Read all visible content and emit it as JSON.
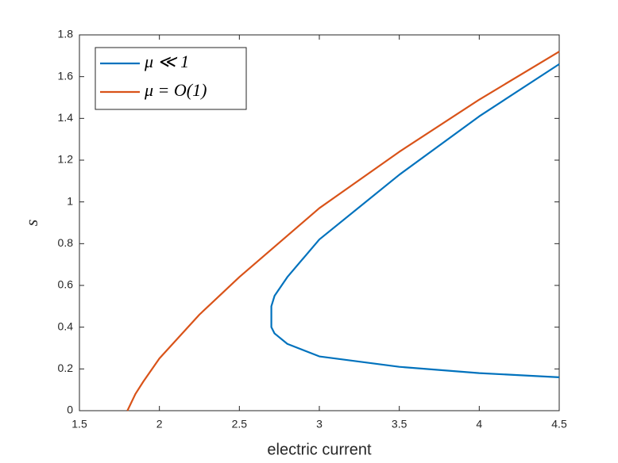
{
  "chart_data": {
    "type": "line",
    "x_label": "electric current",
    "y_label": "s",
    "xlim": [
      1.5,
      4.5
    ],
    "xticks": [
      1.5,
      2,
      2.5,
      3,
      3.5,
      4,
      4.5
    ],
    "ylim": [
      0,
      1.8
    ],
    "yticks": [
      0,
      0.2,
      0.4,
      0.6,
      0.8,
      1,
      1.2,
      1.4,
      1.6,
      1.8
    ],
    "grid": false,
    "legend": "upper-left",
    "series": [
      {
        "name": "μ ≪ 1",
        "color": "#0072bd",
        "x": [
          4.5,
          4,
          3.5,
          3,
          2.8,
          2.72,
          2.7,
          2.7,
          2.72,
          2.8,
          3,
          3.5,
          4,
          4.5
        ],
        "values": [
          0.16,
          0.18,
          0.21,
          0.26,
          0.32,
          0.37,
          0.4,
          0.5,
          0.55,
          0.64,
          0.82,
          1.13,
          1.41,
          1.66
        ]
      },
      {
        "name": "μ = O(1)",
        "color": "#d95319",
        "x": [
          1.8,
          1.85,
          1.9,
          2,
          2.25,
          2.5,
          3,
          3.5,
          4,
          4.5
        ],
        "values": [
          0,
          0.08,
          0.14,
          0.25,
          0.46,
          0.64,
          0.97,
          1.24,
          1.49,
          1.72
        ]
      }
    ]
  }
}
